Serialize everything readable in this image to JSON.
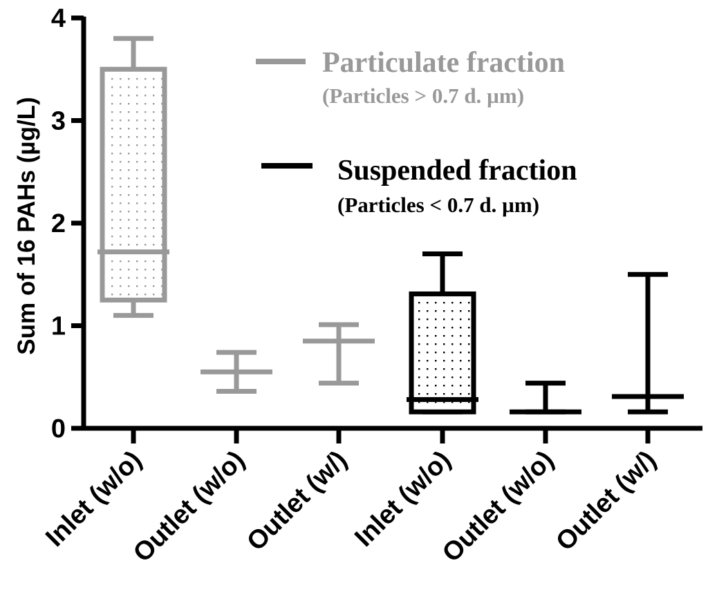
{
  "chart_data": {
    "type": "box",
    "ylabel": "Sum of 16 PAHs (µg/L)",
    "ylim": [
      0,
      4
    ],
    "yticks": [
      "0",
      "1",
      "2",
      "3",
      "4"
    ],
    "categories": [
      "Inlet (w/o)",
      "Outlet (w/o)",
      "Outlet (w/)",
      "Inlet (w/o)",
      "Outlet (w/o)",
      "Outlet (w/)"
    ],
    "series": [
      {
        "name": "Particulate fraction",
        "sublabel": "(Particles > 0.7 d. µm)",
        "color": "#999999",
        "boxes": [
          {
            "category_index": 0,
            "min": 1.1,
            "q1": 1.25,
            "median": 1.72,
            "q3": 3.5,
            "max": 3.8
          },
          {
            "category_index": 1,
            "min": 0.36,
            "q1": 0.55,
            "median": 0.55,
            "q3": 0.55,
            "max": 0.74
          },
          {
            "category_index": 2,
            "min": 0.44,
            "q1": 0.85,
            "median": 0.85,
            "q3": 0.85,
            "max": 1.01
          }
        ]
      },
      {
        "name": "Suspended fraction",
        "sublabel": "(Particles < 0.7 d. µm)",
        "color": "#000000",
        "boxes": [
          {
            "category_index": 3,
            "min": 0.16,
            "q1": 0.16,
            "median": 0.28,
            "q3": 1.31,
            "max": 1.7
          },
          {
            "category_index": 4,
            "min": 0.16,
            "q1": 0.16,
            "median": 0.16,
            "q3": 0.16,
            "max": 0.44
          },
          {
            "category_index": 5,
            "min": 0.16,
            "q1": 0.31,
            "median": 0.31,
            "q3": 0.31,
            "max": 1.5
          }
        ]
      }
    ],
    "legend_position": "top-right"
  }
}
